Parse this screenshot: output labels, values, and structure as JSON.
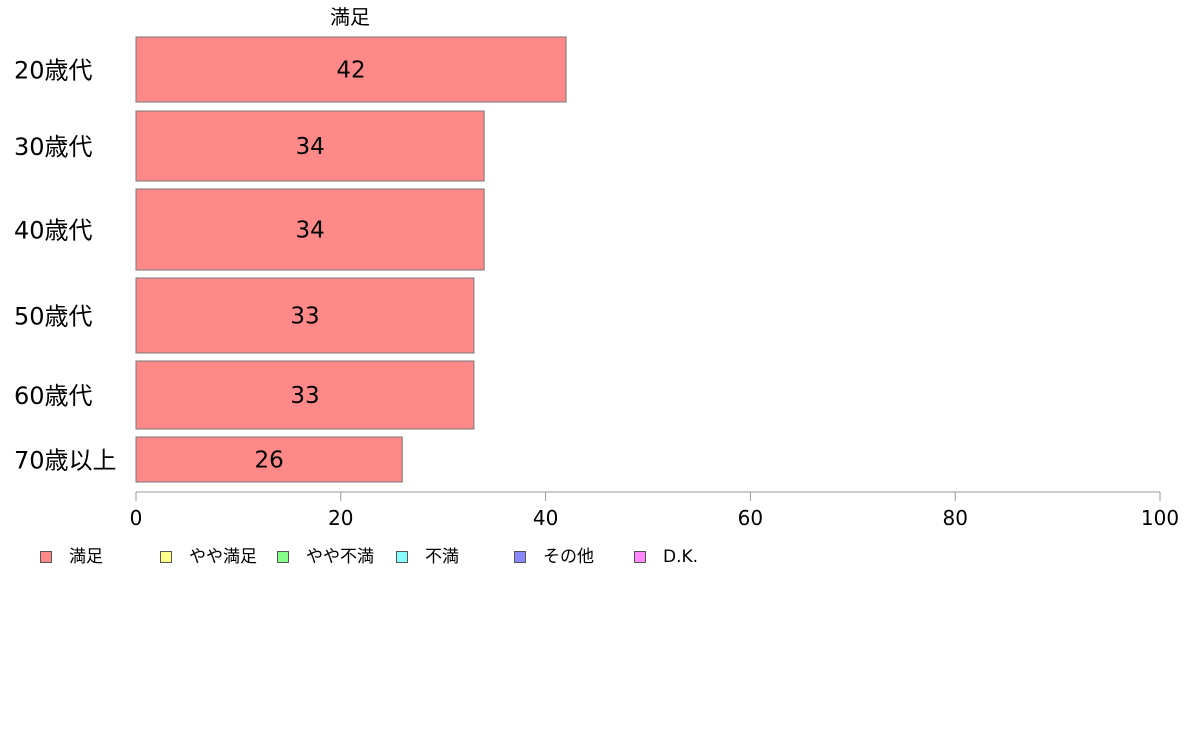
{
  "chart_data": {
    "type": "bar",
    "orientation": "horizontal",
    "title": "満足",
    "categories": [
      "20歳代",
      "30歳代",
      "40歳代",
      "50歳代",
      "60歳代",
      "70歳以上"
    ],
    "series": [
      {
        "name": "満足",
        "color": "#ff8888",
        "values": [
          42,
          34,
          34,
          33,
          33,
          26
        ]
      }
    ],
    "data_labels": [
      "42",
      "34",
      "34",
      "33",
      "33",
      "26"
    ],
    "xlim": [
      0,
      100
    ],
    "xticks": [
      0,
      20,
      40,
      60,
      80,
      100
    ],
    "xtick_labels": [
      "0",
      "20",
      "40",
      "60",
      "80",
      "100"
    ],
    "grid": false,
    "legend_position": "bottom",
    "legend": [
      {
        "label": "満足",
        "color": "#ff8888"
      },
      {
        "label": "やや満足",
        "color": "#ffff88"
      },
      {
        "label": "やや不満",
        "color": "#88ff88"
      },
      {
        "label": "不満",
        "color": "#88ffff"
      },
      {
        "label": "その他",
        "color": "#8888ff"
      },
      {
        "label": "D.K.",
        "color": "#ff88ff"
      }
    ]
  }
}
